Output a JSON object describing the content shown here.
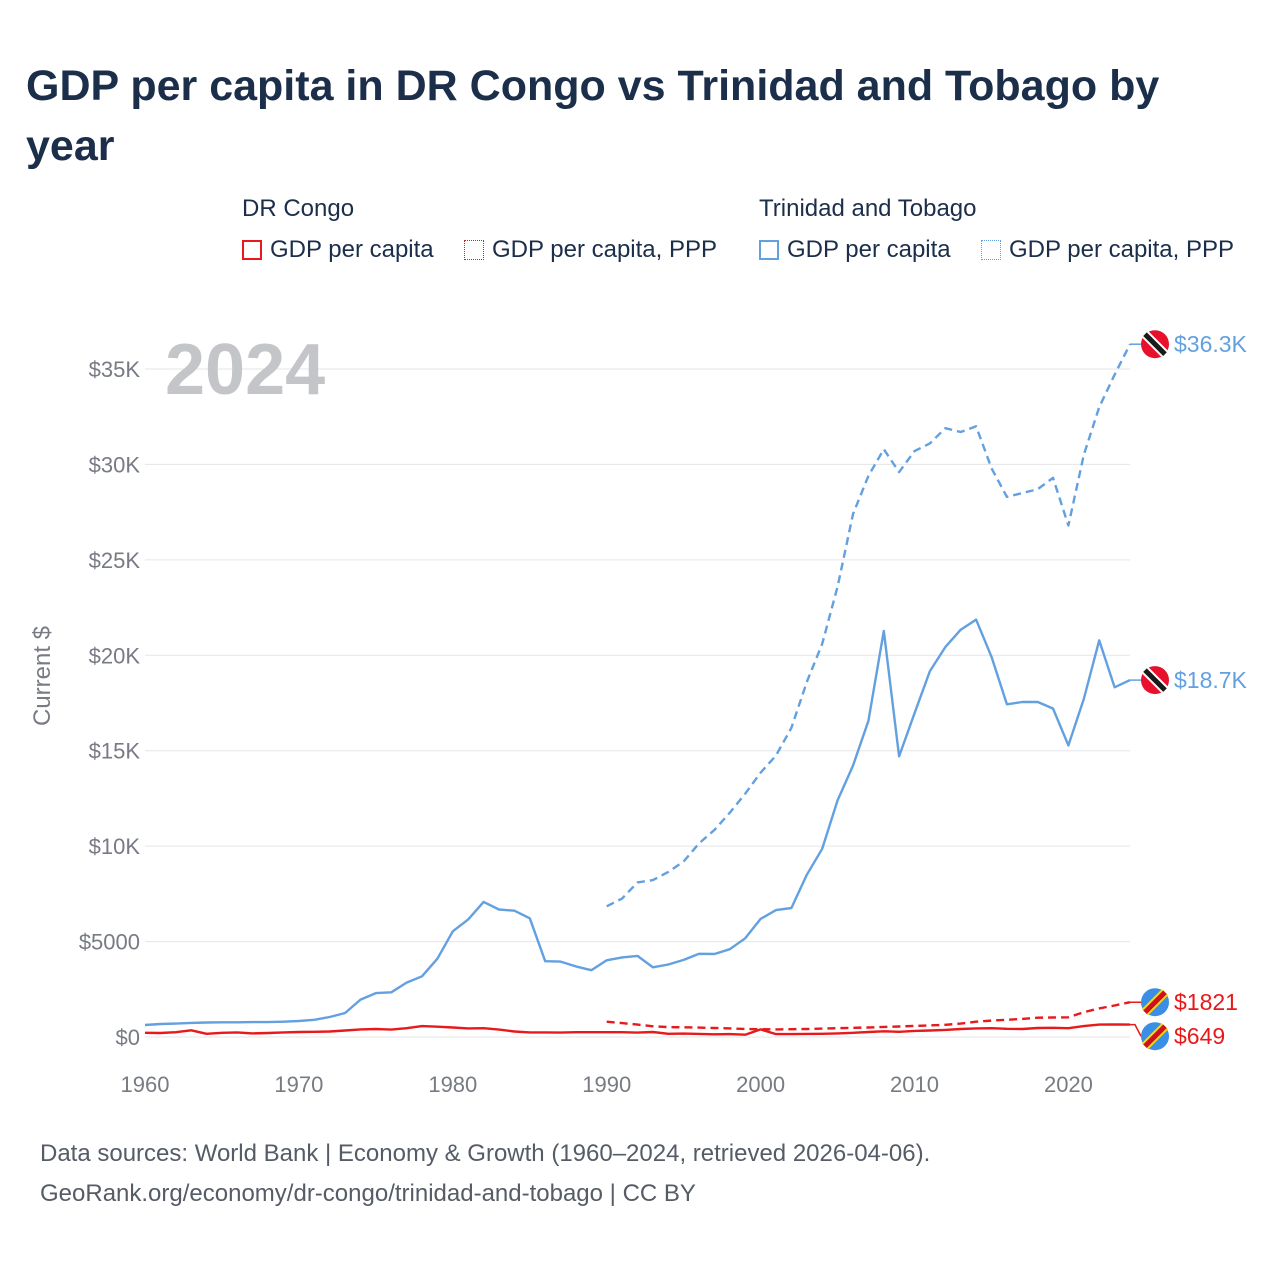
{
  "title": "GDP per capita in DR Congo vs Trinidad and Tobago by year",
  "legend": {
    "groups": [
      {
        "name": "DR Congo",
        "items": [
          "GDP per capita",
          "GDP per capita, PPP"
        ]
      },
      {
        "name": "Trinidad and Tobago",
        "items": [
          "GDP per capita",
          "GDP per capita, PPP"
        ]
      }
    ]
  },
  "colors": {
    "cod": "#e8191b",
    "tto": "#62a0e0",
    "year_label": "#c3c5c9",
    "title": "#1b2e4a"
  },
  "footer": {
    "line1": "Data sources: World Bank | Economy & Growth (1960–2024, retrieved 2026-04-06).",
    "line2": "GeoRank.org/economy/dr-congo/trinidad-and-tobago | CC BY"
  },
  "chart_data": {
    "type": "line",
    "title": "GDP per capita in DR Congo vs Trinidad and Tobago by year",
    "year_label": "2024",
    "xlabel": "",
    "ylabel": "Current $",
    "xlim": [
      1960,
      2024
    ],
    "ylim": [
      0,
      37000
    ],
    "x_ticks": [
      1960,
      1970,
      1980,
      1990,
      2000,
      2010,
      2020
    ],
    "x_tick_labels": [
      "1960",
      "1970",
      "1980",
      "1990",
      "2000",
      "2010",
      "2020"
    ],
    "y_ticks": [
      0,
      5000,
      10000,
      15000,
      20000,
      25000,
      30000,
      35000
    ],
    "y_tick_labels": [
      "$0",
      "$5000",
      "$10K",
      "$15K",
      "$20K",
      "$25K",
      "$30K",
      "$35K"
    ],
    "series": [
      {
        "name": "DR Congo — GDP per capita",
        "country": "cod",
        "style": "solid",
        "end_label": "$649",
        "x": [
          1960,
          1961,
          1962,
          1963,
          1964,
          1965,
          1966,
          1967,
          1968,
          1969,
          1970,
          1971,
          1972,
          1973,
          1974,
          1975,
          1976,
          1977,
          1978,
          1979,
          1980,
          1981,
          1982,
          1983,
          1984,
          1985,
          1986,
          1987,
          1988,
          1989,
          1990,
          1991,
          1992,
          1993,
          1994,
          1995,
          1996,
          1997,
          1998,
          1999,
          2000,
          2001,
          2002,
          2003,
          2004,
          2005,
          2006,
          2007,
          2008,
          2009,
          2010,
          2011,
          2012,
          2013,
          2014,
          2015,
          2016,
          2017,
          2018,
          2019,
          2020,
          2021,
          2022,
          2023,
          2024
        ],
        "values": [
          220,
          210,
          250,
          350,
          170,
          220,
          240,
          190,
          210,
          240,
          260,
          270,
          290,
          340,
          400,
          420,
          390,
          460,
          570,
          540,
          500,
          450,
          460,
          390,
          290,
          240,
          240,
          230,
          250,
          250,
          250,
          250,
          230,
          260,
          170,
          180,
          160,
          140,
          150,
          120,
          400,
          150,
          150,
          160,
          170,
          190,
          220,
          260,
          300,
          270,
          320,
          340,
          370,
          420,
          450,
          460,
          430,
          420,
          470,
          480,
          460,
          570,
          650,
          660,
          649
        ]
      },
      {
        "name": "DR Congo — GDP per capita, PPP",
        "country": "cod",
        "style": "dashed",
        "end_label": "$1821",
        "x": [
          1990,
          1991,
          1992,
          1993,
          1994,
          1995,
          1996,
          1997,
          1998,
          1999,
          2000,
          2001,
          2002,
          2003,
          2004,
          2005,
          2006,
          2007,
          2008,
          2009,
          2010,
          2011,
          2012,
          2013,
          2014,
          2015,
          2016,
          2017,
          2018,
          2019,
          2020,
          2021,
          2022,
          2023,
          2024
        ],
        "values": [
          800,
          730,
          650,
          560,
          520,
          510,
          490,
          470,
          450,
          420,
          410,
          400,
          410,
          420,
          440,
          460,
          480,
          500,
          530,
          550,
          580,
          610,
          640,
          700,
          800,
          860,
          900,
          950,
          1010,
          1020,
          1030,
          1300,
          1500,
          1650,
          1821
        ]
      },
      {
        "name": "Trinidad and Tobago — GDP per capita",
        "country": "tto",
        "style": "solid",
        "end_label": "$18.7K",
        "x": [
          1960,
          1961,
          1962,
          1963,
          1964,
          1965,
          1966,
          1967,
          1968,
          1969,
          1970,
          1971,
          1972,
          1973,
          1974,
          1975,
          1976,
          1977,
          1978,
          1979,
          1980,
          1981,
          1982,
          1983,
          1984,
          1985,
          1986,
          1987,
          1988,
          1989,
          1990,
          1991,
          1992,
          1993,
          1994,
          1995,
          1996,
          1997,
          1998,
          1999,
          2000,
          2001,
          2002,
          2003,
          2004,
          2005,
          2006,
          2007,
          2008,
          2009,
          2010,
          2011,
          2012,
          2013,
          2014,
          2015,
          2016,
          2017,
          2018,
          2019,
          2020,
          2021,
          2022,
          2023,
          2024
        ],
        "values": [
          630,
          680,
          700,
          740,
          760,
          770,
          770,
          780,
          780,
          800,
          840,
          900,
          1050,
          1260,
          1960,
          2300,
          2340,
          2850,
          3180,
          4100,
          5540,
          6160,
          7080,
          6680,
          6620,
          6220,
          3970,
          3950,
          3700,
          3500,
          4020,
          4170,
          4250,
          3650,
          3800,
          4040,
          4360,
          4350,
          4600,
          5170,
          6190,
          6650,
          6760,
          8500,
          9860,
          12400,
          14220,
          16560,
          21280,
          14700,
          16960,
          19170,
          20430,
          21340,
          21870,
          19920,
          17430,
          17550,
          17550,
          17210,
          15280,
          17710,
          20780,
          18320,
          18700
        ]
      },
      {
        "name": "Trinidad and Tobago — GDP per capita, PPP",
        "country": "tto",
        "style": "dashed",
        "end_label": "$36.3K",
        "x": [
          1990,
          1991,
          1992,
          1993,
          1994,
          1995,
          1996,
          1997,
          1998,
          1999,
          2000,
          2001,
          2002,
          2003,
          2004,
          2005,
          2006,
          2007,
          2008,
          2009,
          2010,
          2011,
          2012,
          2013,
          2014,
          2015,
          2016,
          2017,
          2018,
          2019,
          2020,
          2021,
          2022,
          2023,
          2024
        ],
        "values": [
          6850,
          7250,
          8100,
          8220,
          8650,
          9200,
          10150,
          10850,
          11750,
          12750,
          13850,
          14750,
          16200,
          18600,
          20600,
          23600,
          27400,
          29400,
          30800,
          29600,
          30700,
          31100,
          31900,
          31700,
          32000,
          29800,
          28300,
          28500,
          28700,
          29300,
          26800,
          30500,
          33000,
          34700,
          36300
        ]
      }
    ]
  }
}
